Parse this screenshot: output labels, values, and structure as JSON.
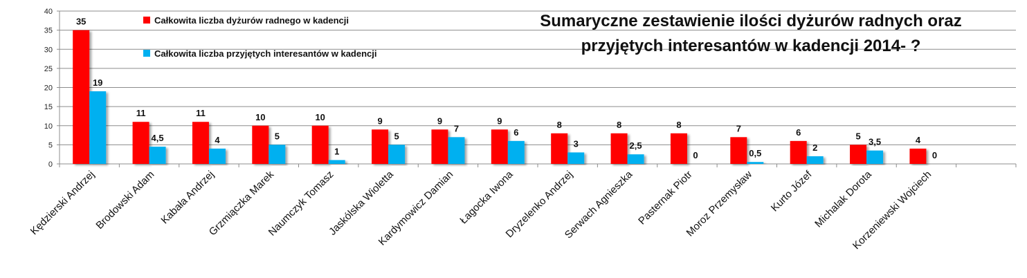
{
  "chart_data": {
    "type": "bar",
    "title_lines": [
      "Sumaryczne zestawienie ilości dyżurów  radnych oraz",
      "przyjętych interesantów w kadencji 2014- ?"
    ],
    "xlabel": "",
    "ylabel": "",
    "ylim": [
      0,
      40
    ],
    "yticks": [
      0,
      5,
      10,
      15,
      20,
      25,
      30,
      35,
      40
    ],
    "grid": true,
    "legend_position": "top-left",
    "categories": [
      "Kędzierski Andrzej",
      "Brodowski Adam",
      "Kabała Andrzej",
      "Grzmiączka Marek",
      "Naumczyk Tomasz",
      "Jaskólska Wioletta",
      "Kardymowicz Damian",
      "Łagocka Iwona",
      "Dryzelenko Andrzej",
      "Serwach Agnieszka",
      "Pasternak Piotr",
      "Moroz Przemysław",
      "Kurto Józef",
      "Michalak Dorota",
      "Korzeniewski Wojciech",
      ""
    ],
    "series": [
      {
        "name": "Całkowita liczba dyżurów radnego w kadencji",
        "color": "#ff0000",
        "values": [
          35,
          11,
          11,
          10,
          10,
          9,
          9,
          9,
          8,
          8,
          8,
          7,
          6,
          5,
          4,
          null
        ],
        "labels": [
          "35",
          "11",
          "11",
          "10",
          "10",
          "9",
          "9",
          "9",
          "8",
          "8",
          "8",
          "7",
          "6",
          "5",
          "4",
          ""
        ]
      },
      {
        "name": "Całkowita liczba przyjętych interesantów w kadencji",
        "color": "#00b0f0",
        "values": [
          19,
          4.5,
          4,
          5,
          1,
          5,
          7,
          6,
          3,
          2.5,
          0,
          0.5,
          2,
          3.5,
          0,
          null
        ],
        "labels": [
          "19",
          "4,5",
          "4",
          "5",
          "1",
          "5",
          "7",
          "6",
          "3",
          "2,5",
          "0",
          "0,5",
          "2",
          "3,5",
          "0",
          ""
        ]
      }
    ]
  }
}
